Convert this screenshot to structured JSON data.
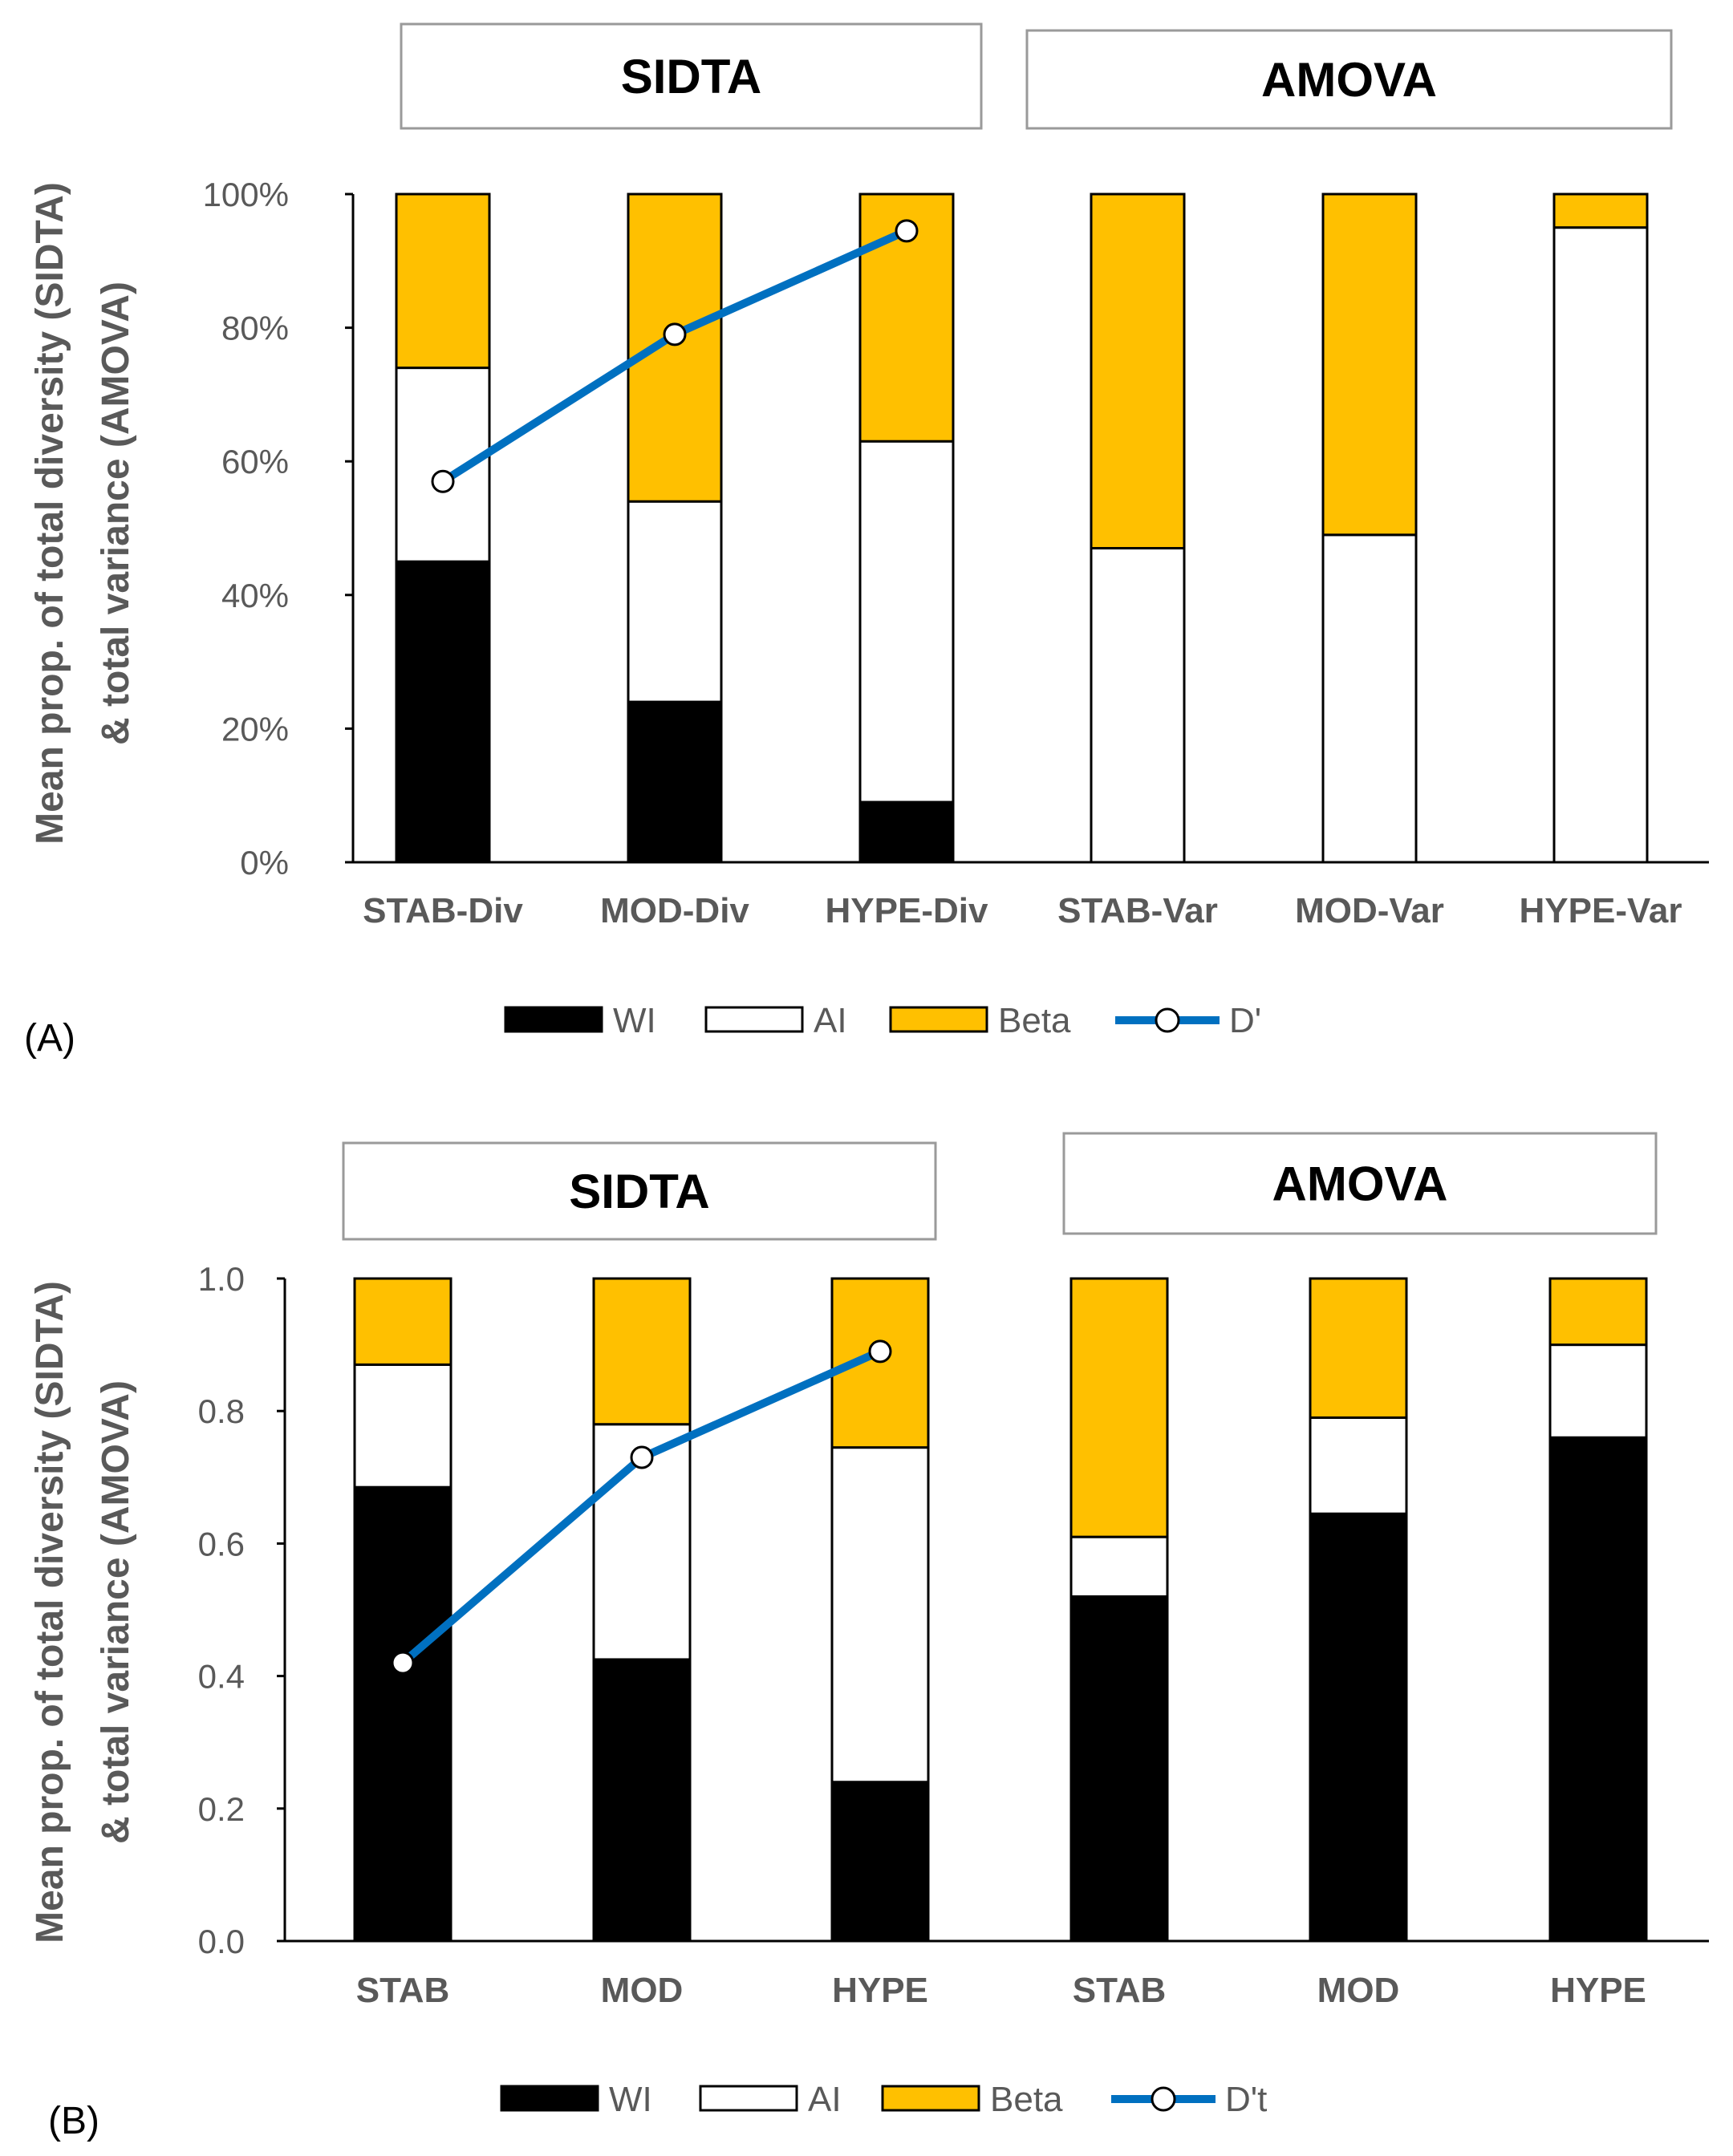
{
  "chart_data": [
    {
      "panel": "(A)",
      "type": "bar",
      "stacked": true,
      "group_titles": [
        "SIDTA",
        "AMOVA"
      ],
      "categories": [
        "STAB-Div",
        "MOD-Div",
        "HYPE-Div",
        "STAB-Var",
        "MOD-Var",
        "HYPE-Var"
      ],
      "series": [
        {
          "name": "WI",
          "color": "#000000",
          "values": [
            0.45,
            0.24,
            0.09,
            0,
            0,
            0
          ]
        },
        {
          "name": "AI",
          "color": "#ffffff",
          "values": [
            0.29,
            0.3,
            0.54,
            0.47,
            0.49,
            0.95
          ]
        },
        {
          "name": "Beta",
          "color": "#FFC000",
          "values": [
            0.26,
            0.46,
            0.37,
            0.53,
            0.51,
            0.05
          ]
        }
      ],
      "line": {
        "name": "D'",
        "color": "#0070C0",
        "x": [
          "STAB-Div",
          "MOD-Div",
          "HYPE-Div"
        ],
        "values": [
          0.57,
          0.79,
          0.945
        ]
      },
      "ylim": [
        0,
        1
      ],
      "yticks": [
        "0%",
        "20%",
        "40%",
        "60%",
        "80%",
        "100%"
      ],
      "ylabel_lines": [
        "Mean prop. of total diversity (SIDTA)",
        "& total variance (AMOVA)"
      ],
      "legend": [
        "WI",
        "AI",
        "Beta",
        "D'"
      ],
      "legend_position": "bottom"
    },
    {
      "panel": "(B)",
      "type": "bar",
      "stacked": true,
      "group_titles": [
        "SIDTA",
        "AMOVA"
      ],
      "categories": [
        "STAB",
        "MOD",
        "HYPE",
        "STAB",
        "MOD",
        "HYPE"
      ],
      "series": [
        {
          "name": "WI",
          "color": "#000000",
          "values": [
            0.685,
            0.425,
            0.24,
            0.52,
            0.645,
            0.76
          ]
        },
        {
          "name": "AI",
          "color": "#ffffff",
          "values": [
            0.185,
            0.355,
            0.505,
            0.09,
            0.145,
            0.14
          ]
        },
        {
          "name": "Beta",
          "color": "#FFC000",
          "values": [
            0.13,
            0.22,
            0.255,
            0.39,
            0.21,
            0.1
          ]
        }
      ],
      "line": {
        "name": "D't",
        "color": "#0070C0",
        "x": [
          "STAB",
          "MOD",
          "HYPE"
        ],
        "values": [
          0.42,
          0.73,
          0.89
        ]
      },
      "ylim": [
        0,
        1
      ],
      "yticks": [
        "0.0",
        "0.2",
        "0.4",
        "0.6",
        "0.8",
        "1.0"
      ],
      "ylabel_lines": [
        "Mean prop. of total diversity (SIDTA)",
        "& total variance (AMOVA)"
      ],
      "legend": [
        "WI",
        "AI",
        "Beta",
        "D't"
      ],
      "legend_position": "bottom"
    }
  ]
}
